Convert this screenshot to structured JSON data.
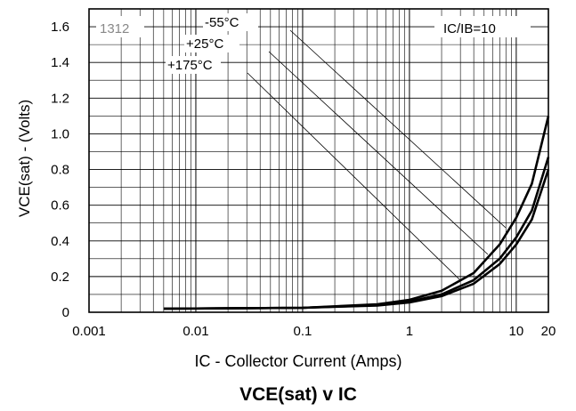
{
  "chart_data": {
    "type": "line",
    "title": "VCE(sat) v IC",
    "xlabel": "IC - Collector Current (Amps)",
    "ylabel": "VCE(sat) - (Volts)",
    "x_scale": "log",
    "xlim": [
      0.001,
      20
    ],
    "ylim": [
      0,
      1.7
    ],
    "x_tick_labels": [
      "0.001",
      "0.01",
      "0.1",
      "1",
      "10",
      "20"
    ],
    "y_tick_labels": [
      "0",
      "0.2",
      "0.4",
      "0.6",
      "0.8",
      "1.0",
      "1.2",
      "1.4",
      "1.6"
    ],
    "grid": true,
    "condition_label": "IC/IB=10",
    "code_label": "1312",
    "series": [
      {
        "name": "-55°C",
        "x": [
          0.005,
          0.1,
          0.5,
          1,
          2,
          4,
          7,
          10,
          14,
          20
        ],
        "y": [
          0.02,
          0.025,
          0.045,
          0.07,
          0.12,
          0.22,
          0.38,
          0.53,
          0.72,
          1.1
        ]
      },
      {
        "name": "+25°C",
        "x": [
          0.005,
          0.1,
          0.5,
          1,
          2,
          4,
          7,
          10,
          14,
          20
        ],
        "y": [
          0.02,
          0.025,
          0.04,
          0.06,
          0.1,
          0.18,
          0.3,
          0.42,
          0.57,
          0.87
        ]
      },
      {
        "name": "+175°C",
        "x": [
          0.005,
          0.1,
          0.5,
          1,
          2,
          4,
          7,
          10,
          14,
          20
        ],
        "y": [
          0.02,
          0.025,
          0.038,
          0.055,
          0.09,
          0.16,
          0.27,
          0.38,
          0.52,
          0.8
        ]
      }
    ],
    "annotations": [
      {
        "text": "-55°C"
      },
      {
        "text": "+25°C"
      },
      {
        "text": "+175°C"
      }
    ]
  }
}
